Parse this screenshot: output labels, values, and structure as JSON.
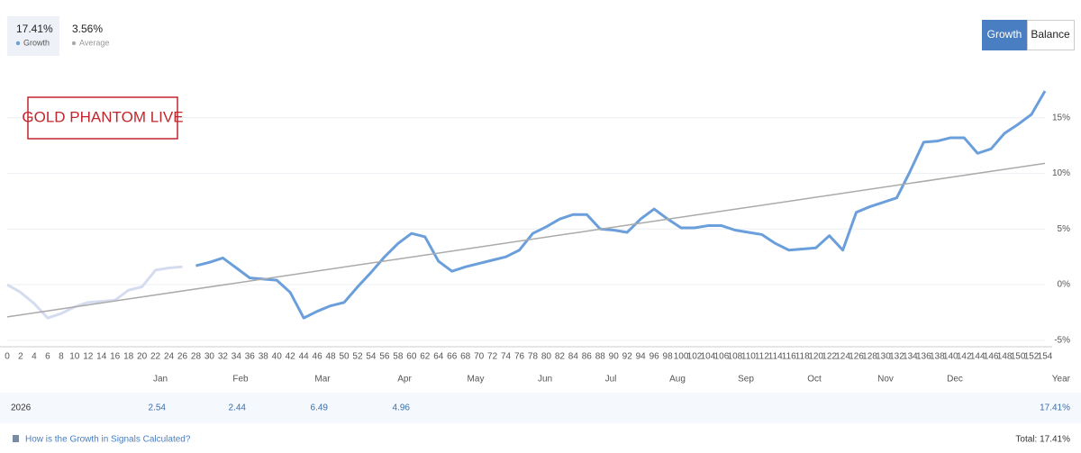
{
  "header": {
    "stats": [
      {
        "value": "17.41%",
        "label": "Growth"
      },
      {
        "value": "3.56%",
        "label": "Average"
      }
    ],
    "buttons": [
      "Growth",
      "Balance"
    ]
  },
  "chart_data": {
    "type": "line",
    "annotation": "GOLD PHANTOM LIVE",
    "grid": true,
    "x": [
      0,
      2,
      4,
      6,
      8,
      10,
      12,
      14,
      16,
      18,
      20,
      22,
      24,
      26,
      28,
      30,
      32,
      34,
      36,
      38,
      40,
      42,
      44,
      46,
      48,
      50,
      52,
      54,
      56,
      58,
      60,
      62,
      64,
      66,
      68,
      70,
      72,
      74,
      76,
      78,
      80,
      82,
      84,
      86,
      88,
      90,
      92,
      94,
      96,
      98,
      100,
      102,
      104,
      106,
      108,
      110,
      112,
      114,
      116,
      118,
      120,
      122,
      124,
      126,
      128,
      130,
      132,
      134,
      136,
      138,
      140,
      142,
      144,
      146,
      148,
      150,
      152,
      154
    ],
    "xlim": [
      0,
      154
    ],
    "xticks": [
      0,
      2,
      4,
      6,
      8,
      10,
      12,
      14,
      16,
      18,
      20,
      22,
      24,
      26,
      28,
      30,
      32,
      34,
      36,
      38,
      40,
      42,
      44,
      46,
      48,
      50,
      52,
      54,
      56,
      58,
      60,
      62,
      64,
      66,
      68,
      70,
      72,
      74,
      76,
      78,
      80,
      82,
      84,
      86,
      88,
      90,
      92,
      94,
      96,
      98,
      100,
      102,
      104,
      106,
      108,
      110,
      112,
      114,
      116,
      118,
      120,
      122,
      124,
      126,
      128,
      130,
      132,
      134,
      136,
      138,
      140,
      142,
      144,
      146,
      148,
      150,
      152,
      154
    ],
    "ylim": [
      -5.5,
      18.7
    ],
    "yticks": [
      {
        "value": -5,
        "label": "-5%"
      },
      {
        "value": 0,
        "label": "0%"
      },
      {
        "value": 5,
        "label": "5%"
      },
      {
        "value": 10,
        "label": "10%"
      },
      {
        "value": 15,
        "label": "15%"
      }
    ],
    "series": [
      {
        "color": "#d5dcf0",
        "values": [
          0,
          -0.7,
          -1.7,
          -3.0,
          -2.6,
          -2.0,
          -1.6,
          -1.5,
          -1.4,
          -0.5,
          -0.2,
          1.3,
          1.5,
          1.6,
          null,
          null,
          null,
          null,
          null,
          null,
          null,
          null,
          null,
          null,
          null,
          null,
          null,
          null,
          null,
          null,
          null,
          null,
          null,
          null,
          null,
          null,
          null,
          null,
          null,
          null,
          null,
          null,
          null,
          null,
          null,
          null,
          null,
          null,
          null,
          null,
          null,
          null,
          null,
          null,
          null,
          null,
          null,
          null,
          null,
          null,
          null,
          null,
          null,
          null,
          null,
          null,
          null,
          null,
          null,
          null,
          null,
          null,
          null,
          null,
          null,
          null,
          null,
          null
        ]
      },
      {
        "color": "#6a9fdb",
        "values": [
          null,
          null,
          null,
          null,
          null,
          null,
          null,
          null,
          null,
          null,
          null,
          null,
          null,
          null,
          1.7,
          2.0,
          2.4,
          1.5,
          0.6,
          0.5,
          0.4,
          -0.7,
          -3.0,
          -2.4,
          -1.9,
          -1.6,
          -0.2,
          1.1,
          2.5,
          3.7,
          4.6,
          4.3,
          2.1,
          1.2,
          1.6,
          1.9,
          2.2,
          2.5,
          3.1,
          4.6,
          5.2,
          5.9,
          6.3,
          6.3,
          5.0,
          4.9,
          4.7,
          5.9,
          6.8,
          5.9,
          5.1,
          5.1,
          5.3,
          5.3,
          4.9,
          4.7,
          4.5,
          3.7,
          3.1,
          3.2,
          3.3,
          4.4,
          3.1,
          6.5,
          7.0,
          7.4,
          7.8,
          10.2,
          12.8,
          12.9,
          13.2,
          13.2,
          11.8,
          12.2,
          13.6,
          14.4,
          15.3,
          17.4
        ]
      },
      {
        "color": "#aaaaaa",
        "x": [
          0,
          154
        ],
        "values": [
          -2.9,
          10.9
        ]
      }
    ]
  },
  "table": {
    "headers": [
      "Jan",
      "Feb",
      "Mar",
      "Apr",
      "May",
      "Jun",
      "Jul",
      "Aug",
      "Sep",
      "Oct",
      "Nov",
      "Dec",
      "Year"
    ],
    "rows": [
      [
        "2026",
        "2.54",
        "2.44",
        "6.49",
        "4.96",
        null,
        null,
        null,
        null,
        null,
        null,
        null,
        null,
        "17.41%"
      ]
    ]
  },
  "footer": {
    "link": "How is the Growth in Signals Calculated?",
    "total": "Total: 17.41%"
  }
}
